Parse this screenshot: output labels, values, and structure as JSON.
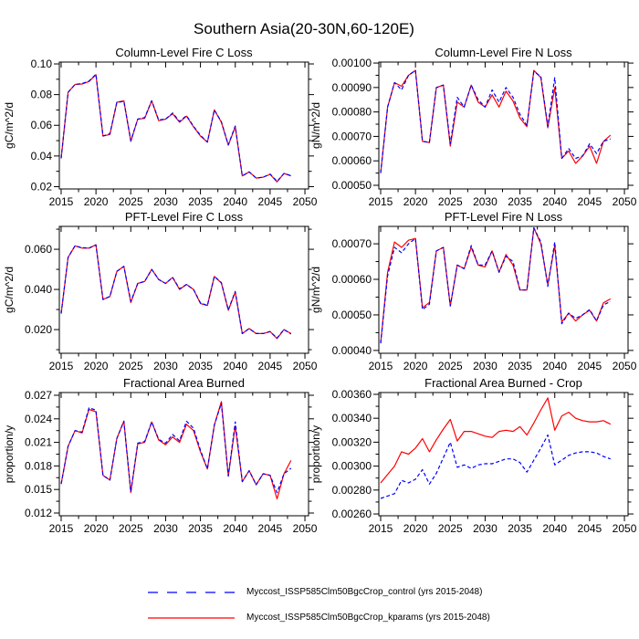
{
  "figure": {
    "title": "Southern Asia(20-30N,60-120E)"
  },
  "legend": {
    "entries": [
      {
        "label": "Myccost_ISSP585Clm50BgcCrop_control (yrs 2015-2048)",
        "color": "#0000ff",
        "style": "dashed"
      },
      {
        "label": "Myccost_ISSP585Clm50BgcCrop_kparams (yrs 2015-2048)",
        "color": "#ff0000",
        "style": "solid"
      }
    ]
  },
  "x_axis": {
    "range": [
      2014.74,
      2050.52
    ],
    "ticks": [
      2015,
      2020,
      2025,
      2030,
      2035,
      2040,
      2045,
      2050
    ],
    "tick_labels": [
      "2015",
      "2020",
      "2025",
      "2030",
      "2035",
      "2040",
      "2045",
      "2050"
    ],
    "minor_step": 2.5
  },
  "years": [
    2015,
    2016,
    2017,
    2018,
    2019,
    2020,
    2021,
    2022,
    2023,
    2024,
    2025,
    2026,
    2027,
    2028,
    2029,
    2030,
    2031,
    2032,
    2033,
    2034,
    2035,
    2036,
    2037,
    2038,
    2039,
    2040,
    2041,
    2042,
    2043,
    2044,
    2045,
    2046,
    2047,
    2048
  ],
  "chart_data": [
    {
      "type": "line",
      "id": "column-fire-c-loss",
      "title": "Column-Level Fire C Loss",
      "ylabel": "gC/m^2/d",
      "ylim": [
        0.0185,
        0.1012
      ],
      "yticks": [
        0.02,
        0.04,
        0.06,
        0.08,
        0.1
      ],
      "ytick_labels": [
        "0.02",
        "0.04",
        "0.06",
        "0.08",
        "0.10"
      ],
      "yminor": [
        0.03,
        0.05,
        0.07,
        0.09
      ],
      "series": [
        {
          "name": "control",
          "color": "#0000ff",
          "style": "dashed",
          "values": [
            0.0385,
            0.0815,
            0.0866,
            0.0872,
            0.0888,
            0.0933,
            0.053,
            0.0545,
            0.0748,
            0.0757,
            0.05,
            0.064,
            0.065,
            0.076,
            0.0635,
            0.064,
            0.068,
            0.0625,
            0.0663,
            0.0593,
            0.0535,
            0.049,
            0.07,
            0.0623,
            0.0473,
            0.0595,
            0.027,
            0.0296,
            0.0256,
            0.0262,
            0.0282,
            0.0235,
            0.0286,
            0.0272
          ]
        },
        {
          "name": "kparams",
          "color": "#ff0000",
          "style": "solid",
          "values": [
            0.0385,
            0.0815,
            0.0866,
            0.0869,
            0.0885,
            0.093,
            0.053,
            0.054,
            0.075,
            0.076,
            0.0495,
            0.064,
            0.0645,
            0.076,
            0.063,
            0.064,
            0.0675,
            0.062,
            0.066,
            0.059,
            0.053,
            0.049,
            0.07,
            0.062,
            0.047,
            0.059,
            0.027,
            0.0296,
            0.0256,
            0.0262,
            0.028,
            0.0231,
            0.0286,
            0.027
          ]
        }
      ]
    },
    {
      "type": "line",
      "id": "column-fire-n-loss",
      "title": "Column-Level Fire N Loss",
      "ylabel": "gN/m^2/d",
      "ylim": [
        0.000485,
        0.001004
      ],
      "yticks": [
        0.0005,
        0.0006,
        0.0007,
        0.0008,
        0.0009,
        0.001
      ],
      "ytick_labels": [
        "0.00050",
        "0.00060",
        "0.00070",
        "0.00080",
        "0.00090",
        "0.00100"
      ],
      "yminor": [
        0.00055,
        0.00065,
        0.00075,
        0.00085,
        0.00095
      ],
      "series": [
        {
          "name": "control",
          "color": "#0000ff",
          "style": "dashed",
          "values": [
            0.00055,
            0.00082,
            0.00092,
            0.00089,
            0.00095,
            0.00097,
            0.00068,
            0.000675,
            0.0009,
            0.00091,
            0.00067,
            0.00086,
            0.00082,
            0.00091,
            0.00085,
            0.00082,
            0.00089,
            0.00084,
            0.0009,
            0.00086,
            0.00079,
            0.000745,
            0.000965,
            0.000945,
            0.00074,
            0.00094,
            0.00061,
            0.00065,
            0.00061,
            0.00062,
            0.00067,
            0.00063,
            0.00068,
            0.00069
          ]
        },
        {
          "name": "kparams",
          "color": "#ff0000",
          "style": "solid",
          "values": [
            0.00055,
            0.00082,
            0.00092,
            0.000905,
            0.00095,
            0.00097,
            0.00068,
            0.000675,
            0.0009,
            0.00091,
            0.00066,
            0.00084,
            0.00082,
            0.00091,
            0.00084,
            0.00082,
            0.00087,
            0.00082,
            0.000885,
            0.000845,
            0.000775,
            0.00074,
            0.00097,
            0.00094,
            0.000735,
            0.0009,
            0.00061,
            0.00064,
            0.00059,
            0.00062,
            0.00066,
            0.00059,
            0.00068,
            0.000705
          ]
        }
      ]
    },
    {
      "type": "line",
      "id": "pft-fire-c-loss",
      "title": "PFT-Level Fire C Loss",
      "ylabel": "gC/m^2/d",
      "ylim": [
        0.0082,
        0.0714
      ],
      "yticks": [
        0.02,
        0.04,
        0.06
      ],
      "ytick_labels": [
        "0.020",
        "0.040",
        "0.060"
      ],
      "yminor": [
        0.01,
        0.03,
        0.05,
        0.07
      ],
      "series": [
        {
          "name": "control",
          "color": "#0000ff",
          "style": "dashed",
          "values": [
            0.028,
            0.056,
            0.0617,
            0.0608,
            0.0606,
            0.0622,
            0.035,
            0.0365,
            0.049,
            0.0515,
            0.034,
            0.043,
            0.044,
            0.05,
            0.045,
            0.043,
            0.046,
            0.0403,
            0.0425,
            0.04,
            0.0333,
            0.032,
            0.0465,
            0.0434,
            0.0298,
            0.039,
            0.018,
            0.0205,
            0.018,
            0.018,
            0.019,
            0.0158,
            0.02,
            0.0178
          ]
        },
        {
          "name": "kparams",
          "color": "#ff0000",
          "style": "solid",
          "values": [
            0.028,
            0.056,
            0.0617,
            0.0606,
            0.0606,
            0.0622,
            0.035,
            0.0365,
            0.049,
            0.0515,
            0.0335,
            0.043,
            0.044,
            0.05,
            0.045,
            0.043,
            0.046,
            0.04,
            0.0425,
            0.04,
            0.033,
            0.032,
            0.0465,
            0.0432,
            0.0296,
            0.0387,
            0.018,
            0.0205,
            0.018,
            0.018,
            0.019,
            0.0155,
            0.02,
            0.018
          ]
        }
      ]
    },
    {
      "type": "line",
      "id": "pft-fire-n-loss",
      "title": "PFT-Level Fire N Loss",
      "ylabel": "gN/m^2/d",
      "ylim": [
        0.000392,
        0.000749
      ],
      "yticks": [
        0.0004,
        0.0005,
        0.0006,
        0.0007
      ],
      "ytick_labels": [
        "0.00040",
        "0.00050",
        "0.00060",
        "0.00070"
      ],
      "yminor": [
        0.00045,
        0.00055,
        0.00065
      ],
      "series": [
        {
          "name": "control",
          "color": "#0000ff",
          "style": "dashed",
          "values": [
            0.00042,
            0.00061,
            0.00069,
            0.000675,
            0.0007,
            0.000715,
            0.000515,
            0.00053,
            0.00068,
            0.00069,
            0.000525,
            0.00064,
            0.00063,
            0.000695,
            0.00064,
            0.00064,
            0.00068,
            0.00062,
            0.000665,
            0.00065,
            0.00057,
            0.00057,
            0.000745,
            0.000705,
            0.00058,
            0.000705,
            0.000475,
            0.000505,
            0.00049,
            0.0005,
            0.000515,
            0.000483,
            0.000528,
            0.000538
          ]
        },
        {
          "name": "kparams",
          "color": "#ff0000",
          "style": "solid",
          "values": [
            0.00042,
            0.00062,
            0.000705,
            0.00069,
            0.00071,
            0.000715,
            0.00052,
            0.000535,
            0.00068,
            0.00069,
            0.000525,
            0.00064,
            0.00063,
            0.00069,
            0.00064,
            0.000635,
            0.00068,
            0.00062,
            0.00067,
            0.00064,
            0.00057,
            0.00057,
            0.000745,
            0.0007,
            0.000585,
            0.000695,
            0.00048,
            0.000505,
            0.000483,
            0.0005,
            0.000513,
            0.000483,
            0.000534,
            0.000545
          ]
        }
      ]
    },
    {
      "type": "line",
      "id": "fractional-area-burned",
      "title": "Fractional Area Burned",
      "ylabel": "proportion/y",
      "ylim": [
        0.01165,
        0.02735
      ],
      "yticks": [
        0.012,
        0.015,
        0.018,
        0.021,
        0.024,
        0.027
      ],
      "ytick_labels": [
        "0.012",
        "0.015",
        "0.018",
        "0.021",
        "0.024",
        "0.027"
      ],
      "yminor": [
        0.0135,
        0.0165,
        0.0195,
        0.0225,
        0.0255
      ],
      "series": [
        {
          "name": "control",
          "color": "#0000ff",
          "style": "dashed",
          "values": [
            0.0157,
            0.0205,
            0.0225,
            0.0223,
            0.0254,
            0.0251,
            0.0168,
            0.0162,
            0.0215,
            0.0237,
            0.0147,
            0.0209,
            0.0211,
            0.0236,
            0.0214,
            0.0209,
            0.022,
            0.0212,
            0.0237,
            0.0228,
            0.02,
            0.0176,
            0.0232,
            0.026,
            0.0167,
            0.0236,
            0.016,
            0.0174,
            0.0156,
            0.017,
            0.0168,
            0.0146,
            0.017,
            0.0177
          ]
        },
        {
          "name": "kparams",
          "color": "#ff0000",
          "style": "solid",
          "values": [
            0.0157,
            0.0205,
            0.0225,
            0.0222,
            0.0252,
            0.0249,
            0.0168,
            0.0162,
            0.0215,
            0.0237,
            0.0146,
            0.0208,
            0.021,
            0.0236,
            0.0213,
            0.0207,
            0.0217,
            0.021,
            0.0233,
            0.0225,
            0.0198,
            0.0176,
            0.0232,
            0.0262,
            0.0167,
            0.0231,
            0.016,
            0.0174,
            0.0156,
            0.017,
            0.0168,
            0.0138,
            0.017,
            0.0187
          ]
        }
      ]
    },
    {
      "type": "line",
      "id": "fractional-area-burned-crop",
      "title": "Fractional Area Burned - Crop",
      "ylabel": "proportion/y",
      "ylim": [
        0.002585,
        0.003615
      ],
      "yticks": [
        0.0026,
        0.0028,
        0.003,
        0.0032,
        0.0034,
        0.0036
      ],
      "ytick_labels": [
        "0.00260",
        "0.00280",
        "0.00300",
        "0.00320",
        "0.00340",
        "0.00360"
      ],
      "yminor": [
        0.0027,
        0.0029,
        0.0031,
        0.0033,
        0.0035
      ],
      "series": [
        {
          "name": "control",
          "color": "#0000ff",
          "style": "dashed",
          "values": [
            0.00273,
            0.00275,
            0.00277,
            0.00288,
            0.00286,
            0.00289,
            0.00297,
            0.00285,
            0.00294,
            0.00307,
            0.0032,
            0.00299,
            0.00301,
            0.00298,
            0.00301,
            0.00302,
            0.00302,
            0.00304,
            0.00306,
            0.00306,
            0.00303,
            0.00295,
            0.00305,
            0.00315,
            0.00326,
            0.00301,
            0.00305,
            0.00309,
            0.00311,
            0.00312,
            0.00312,
            0.00311,
            0.00308,
            0.00306
          ]
        },
        {
          "name": "kparams",
          "color": "#ff0000",
          "style": "solid",
          "values": [
            0.00286,
            0.00293,
            0.003,
            0.00312,
            0.0031,
            0.00315,
            0.00323,
            0.00312,
            0.00322,
            0.00331,
            0.00339,
            0.00321,
            0.00329,
            0.00329,
            0.00327,
            0.00325,
            0.00324,
            0.00329,
            0.0033,
            0.00329,
            0.00333,
            0.00326,
            0.00336,
            0.00347,
            0.00357,
            0.0033,
            0.00342,
            0.00345,
            0.0034,
            0.00338,
            0.00337,
            0.00337,
            0.00338,
            0.00335
          ]
        }
      ]
    }
  ]
}
